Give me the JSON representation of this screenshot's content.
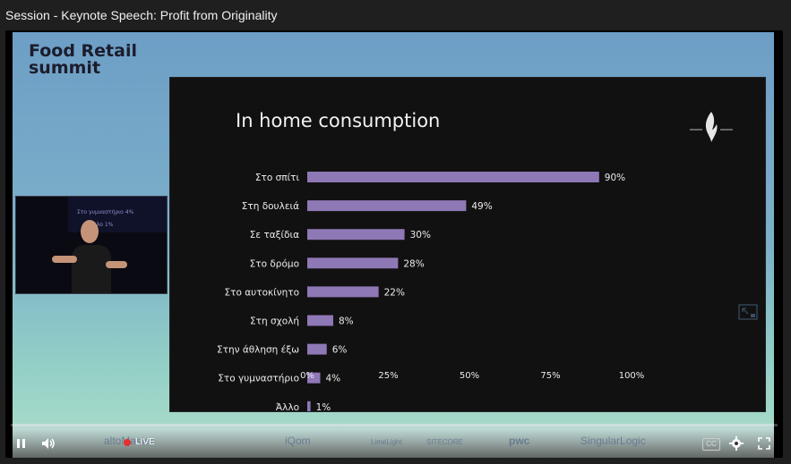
{
  "window": {
    "title": "Session - Keynote Speech: Profit from Originality"
  },
  "stage": {
    "brand": [
      "Food Retail",
      "summit"
    ]
  },
  "slide": {
    "title": "In home consumption"
  },
  "chart_data": {
    "type": "bar",
    "orientation": "horizontal",
    "title": "In home consumption",
    "categories": [
      "Στο σπίτι",
      "Στη δουλειά",
      "Σε ταξίδια",
      "Στο δρόμο",
      "Στο αυτοκίνητο",
      "Στη σχολή",
      "Στην άθληση έξω",
      "Στο γυμναστήριο",
      "Άλλο"
    ],
    "values": [
      90,
      49,
      30,
      28,
      22,
      8,
      6,
      4,
      1
    ],
    "value_labels": [
      "90%",
      "49%",
      "30%",
      "28%",
      "22%",
      "8%",
      "6%",
      "4%",
      "1%"
    ],
    "xlim": [
      0,
      100
    ],
    "xticks": [
      "0%",
      "25%",
      "50%",
      "75%",
      "100%"
    ],
    "bar_color": "#8f78b6",
    "background": "#111111",
    "grid": false
  },
  "pip": {
    "screen_lines": [
      "Στο γυμναστήριο 4%",
      "Άλλο 1%"
    ]
  },
  "controls": {
    "live_label": "LIVE",
    "cc_label": "CC",
    "play_state": "pause-icon",
    "sponsors": [
      "altoMaster",
      "iQom",
      "LimeLight",
      "SITECORE",
      "pwc",
      "SingularLogic"
    ]
  },
  "colors": {
    "accent_live": "#e53030",
    "stage_top": "#6d9ec6",
    "stage_bottom": "#a4d9c9"
  }
}
